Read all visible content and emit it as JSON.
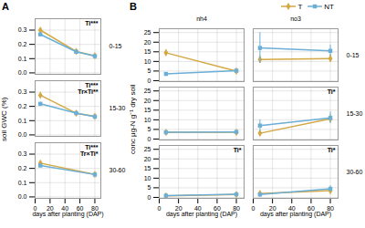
{
  "chart_data": [
    {
      "type": "line",
      "title": "A",
      "xlabel": "days after planting (DAP)",
      "ylabel": "soil GWC (%)",
      "xlim": [
        0,
        88
      ],
      "xticks": [
        0,
        20,
        40,
        60,
        80
      ],
      "ylim": [
        -0.01,
        0.38
      ],
      "yticks": [
        {
          "value": 0.0,
          "label": "0.0"
        },
        0.1,
        0.2,
        0.3
      ],
      "grid": true,
      "rows": [
        "0-15",
        "15-30",
        "30-60"
      ],
      "panels": [
        {
          "x": [
            7,
            55,
            80
          ],
          "annotations": [
            "Ti***"
          ],
          "series": [
            {
              "name": "T",
              "color": "#D4A843",
              "marker": "diamond",
              "values": [
                0.3,
                0.15,
                0.12
              ],
              "yerr": [
                0.012,
                0.005,
                0.005
              ]
            },
            {
              "name": "NT",
              "color": "#6BAED6",
              "marker": "square",
              "values": [
                0.27,
                0.148,
                0.118
              ],
              "yerr": [
                0.012,
                0.005,
                0.005
              ]
            }
          ]
        },
        {
          "x": [
            7,
            55,
            80
          ],
          "annotations": [
            "Ti***",
            "Tr×Ti**"
          ],
          "series": [
            {
              "name": "T",
              "color": "#D4A843",
              "marker": "diamond",
              "values": [
                0.278,
                0.152,
                0.13
              ],
              "yerr": [
                0.01,
                0.005,
                0.005
              ]
            },
            {
              "name": "NT",
              "color": "#6BAED6",
              "marker": "square",
              "values": [
                0.218,
                0.153,
                0.128
              ],
              "yerr": [
                0.01,
                0.005,
                0.005
              ]
            }
          ]
        },
        {
          "x": [
            7,
            80
          ],
          "annotations": [
            "Ti***",
            "Tr×Ti*"
          ],
          "series": [
            {
              "name": "T",
              "color": "#D4A843",
              "marker": "diamond",
              "values": [
                0.237,
                0.158
              ],
              "yerr": [
                0.01,
                0.005
              ]
            },
            {
              "name": "NT",
              "color": "#6BAED6",
              "marker": "square",
              "values": [
                0.22,
                0.157
              ],
              "yerr": [
                0.01,
                0.005
              ]
            }
          ]
        }
      ]
    },
    {
      "type": "line",
      "title": "B",
      "xlabel": "days after planting (DAP)",
      "ylabel": "conc μg-N g⁻¹ dry soil",
      "xlim": [
        0,
        88
      ],
      "xticks": [
        0,
        20,
        40,
        60,
        80
      ],
      "ylim": [
        -0.5,
        27
      ],
      "yticks": [
        0,
        5,
        10,
        15,
        20,
        25
      ],
      "grid": true,
      "legend": "top",
      "columns": [
        "nh4",
        "no3"
      ],
      "rows": [
        "0-15",
        "15-30",
        "30-60"
      ],
      "panels": [
        {
          "x": [
            7,
            80
          ],
          "series": [
            {
              "name": "T",
              "color": "#D4A843",
              "marker": "diamond",
              "values": [
                14.5,
                5.0
              ],
              "yerr": [
                1.5,
                0.5
              ]
            },
            {
              "name": "NT",
              "color": "#6BAED6",
              "marker": "square",
              "values": [
                3.5,
                5.2
              ],
              "yerr": [
                0.5,
                0.5
              ]
            }
          ]
        },
        {
          "x": [
            7,
            80
          ],
          "series": [
            {
              "name": "T",
              "color": "#D4A843",
              "marker": "diamond",
              "values": [
                11.0,
                11.5
              ],
              "yerr": [
                2.0,
                2.0
              ]
            },
            {
              "name": "NT",
              "color": "#6BAED6",
              "marker": "square",
              "values": [
                17.0,
                15.5
              ],
              "yerr": [
                8.0,
                3.0
              ]
            }
          ]
        },
        {
          "x": [
            7,
            80
          ],
          "series": [
            {
              "name": "T",
              "color": "#D4A843",
              "marker": "diamond",
              "values": [
                3.5,
                3.5
              ],
              "yerr": [
                0.4,
                0.3
              ]
            },
            {
              "name": "NT",
              "color": "#6BAED6",
              "marker": "square",
              "values": [
                3.5,
                3.7
              ],
              "yerr": [
                0.5,
                0.3
              ]
            }
          ]
        },
        {
          "x": [
            7,
            80
          ],
          "annotations": [
            "Ti*"
          ],
          "series": [
            {
              "name": "T",
              "color": "#D4A843",
              "marker": "diamond",
              "values": [
                3.0,
                10.5
              ],
              "yerr": [
                1.0,
                2.0
              ]
            },
            {
              "name": "NT",
              "color": "#6BAED6",
              "marker": "square",
              "values": [
                7.0,
                11.0
              ],
              "yerr": [
                3.0,
                3.0
              ]
            }
          ]
        },
        {
          "x": [
            7,
            80
          ],
          "annotations": [
            "Ti*"
          ],
          "series": [
            {
              "name": "T",
              "color": "#D4A843",
              "marker": "diamond",
              "values": [
                0.8,
                1.5
              ],
              "yerr": [
                0.2,
                0.3
              ]
            },
            {
              "name": "NT",
              "color": "#6BAED6",
              "marker": "square",
              "values": [
                0.9,
                1.6
              ],
              "yerr": [
                0.2,
                0.3
              ]
            }
          ]
        },
        {
          "x": [
            7,
            80
          ],
          "annotations": [
            "Ti*"
          ],
          "series": [
            {
              "name": "T",
              "color": "#D4A843",
              "marker": "diamond",
              "values": [
                2.0,
                3.5
              ],
              "yerr": [
                0.5,
                1.0
              ]
            },
            {
              "name": "NT",
              "color": "#6BAED6",
              "marker": "square",
              "values": [
                1.5,
                4.5
              ],
              "yerr": [
                0.5,
                1.5
              ]
            }
          ]
        }
      ]
    }
  ]
}
